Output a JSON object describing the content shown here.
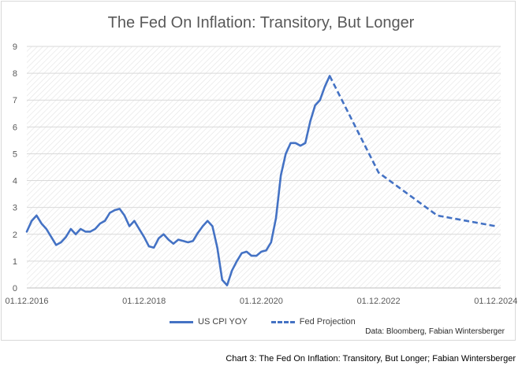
{
  "chart_data": {
    "type": "line",
    "title": "The Fed On Inflation: Transitory, But Longer",
    "xlabel": "",
    "ylabel": "",
    "ylim": [
      0,
      9
    ],
    "yticks": [
      "0",
      "1",
      "2",
      "3",
      "4",
      "5",
      "6",
      "7",
      "8",
      "9"
    ],
    "xticks": [
      {
        "label": "01.12.2016",
        "date": "2016-12"
      },
      {
        "label": "01.12.2018",
        "date": "2018-12"
      },
      {
        "label": "01.12.2020",
        "date": "2020-12"
      },
      {
        "label": "01.12.2022",
        "date": "2022-12"
      },
      {
        "label": "01.12.2024",
        "date": "2024-12"
      }
    ],
    "xlim": [
      "2016-12",
      "2025-01"
    ],
    "grid": "horizontal",
    "legend": "bottom",
    "series": [
      {
        "name": "US CPI YOY",
        "style": "solid",
        "color": "#4472c4",
        "points": [
          [
            "2016-12",
            2.1
          ],
          [
            "2017-01",
            2.5
          ],
          [
            "2017-02",
            2.7
          ],
          [
            "2017-03",
            2.4
          ],
          [
            "2017-04",
            2.2
          ],
          [
            "2017-05",
            1.9
          ],
          [
            "2017-06",
            1.6
          ],
          [
            "2017-07",
            1.7
          ],
          [
            "2017-08",
            1.9
          ],
          [
            "2017-09",
            2.2
          ],
          [
            "2017-10",
            2.0
          ],
          [
            "2017-11",
            2.2
          ],
          [
            "2017-12",
            2.1
          ],
          [
            "2018-01",
            2.1
          ],
          [
            "2018-02",
            2.2
          ],
          [
            "2018-03",
            2.4
          ],
          [
            "2018-04",
            2.5
          ],
          [
            "2018-05",
            2.8
          ],
          [
            "2018-06",
            2.9
          ],
          [
            "2018-07",
            2.95
          ],
          [
            "2018-08",
            2.7
          ],
          [
            "2018-09",
            2.3
          ],
          [
            "2018-10",
            2.5
          ],
          [
            "2018-11",
            2.2
          ],
          [
            "2018-12",
            1.9
          ],
          [
            "2019-01",
            1.55
          ],
          [
            "2019-02",
            1.5
          ],
          [
            "2019-03",
            1.85
          ],
          [
            "2019-04",
            2.0
          ],
          [
            "2019-05",
            1.8
          ],
          [
            "2019-06",
            1.65
          ],
          [
            "2019-07",
            1.8
          ],
          [
            "2019-08",
            1.75
          ],
          [
            "2019-09",
            1.7
          ],
          [
            "2019-10",
            1.75
          ],
          [
            "2019-11",
            2.05
          ],
          [
            "2019-12",
            2.3
          ],
          [
            "2020-01",
            2.5
          ],
          [
            "2020-02",
            2.3
          ],
          [
            "2020-03",
            1.5
          ],
          [
            "2020-04",
            0.3
          ],
          [
            "2020-05",
            0.1
          ],
          [
            "2020-06",
            0.65
          ],
          [
            "2020-07",
            1.0
          ],
          [
            "2020-08",
            1.3
          ],
          [
            "2020-09",
            1.35
          ],
          [
            "2020-10",
            1.2
          ],
          [
            "2020-11",
            1.2
          ],
          [
            "2020-12",
            1.35
          ],
          [
            "2021-01",
            1.4
          ],
          [
            "2021-02",
            1.7
          ],
          [
            "2021-03",
            2.6
          ],
          [
            "2021-04",
            4.2
          ],
          [
            "2021-05",
            5.0
          ],
          [
            "2021-06",
            5.4
          ],
          [
            "2021-07",
            5.4
          ],
          [
            "2021-08",
            5.3
          ],
          [
            "2021-09",
            5.4
          ],
          [
            "2021-10",
            6.2
          ],
          [
            "2021-11",
            6.8
          ],
          [
            "2021-12",
            7.0
          ],
          [
            "2022-01",
            7.5
          ],
          [
            "2022-02",
            7.9
          ]
        ]
      },
      {
        "name": "Fed Projection",
        "style": "dashed",
        "color": "#4472c4",
        "points": [
          [
            "2022-02",
            7.9
          ],
          [
            "2022-12",
            4.3
          ],
          [
            "2023-12",
            2.7
          ],
          [
            "2024-12",
            2.3
          ]
        ]
      }
    ]
  },
  "source_note": "Data: Bloomberg, Fabian Wintersberger",
  "caption": "Chart 3: The Fed On Inflation: Transitory, But Longer; Fabian Wintersberger"
}
